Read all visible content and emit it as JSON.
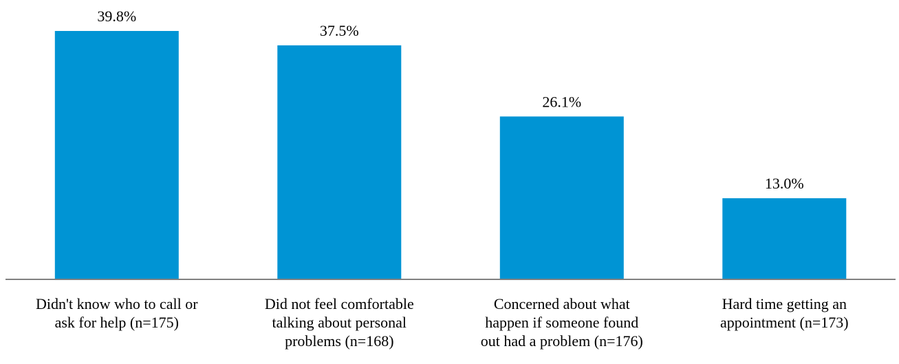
{
  "colors": {
    "bar": "#0094d4",
    "axis": "#808080",
    "text": "#000000"
  },
  "chart_data": {
    "type": "bar",
    "title": "",
    "xlabel": "",
    "ylabel": "",
    "ylim": [
      0,
      40
    ],
    "grid": false,
    "legend": "none",
    "categories": [
      [
        "Didn't know who to call or",
        "ask for help (n=175)"
      ],
      [
        "Did not feel comfortable",
        "talking about personal",
        "problems (n=168)"
      ],
      [
        "Concerned about what",
        "happen if someone found",
        "out had a problem (n=176)"
      ],
      [
        "Hard time getting an",
        "appointment (n=173)"
      ]
    ],
    "values": [
      39.8,
      37.5,
      26.1,
      13.0
    ],
    "data_labels": [
      "39.8%",
      "37.5%",
      "26.1%",
      "13.0%"
    ]
  }
}
